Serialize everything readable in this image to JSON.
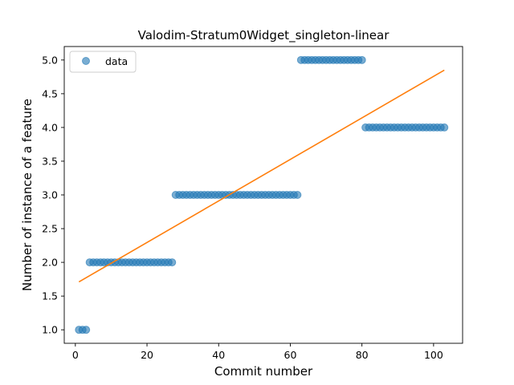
{
  "chart_data": {
    "type": "scatter",
    "title": "Valodim-Stratum0Widget_singleton-linear",
    "xlabel": "Commit number",
    "ylabel": "Number of instance of a feature",
    "xlim": [
      -3.1,
      108.1
    ],
    "ylim": [
      0.8,
      5.2
    ],
    "xticks": [
      0,
      20,
      40,
      60,
      80,
      100
    ],
    "yticks": [
      1.0,
      1.5,
      2.0,
      2.5,
      3.0,
      3.5,
      4.0,
      4.5,
      5.0
    ],
    "xtick_labels": [
      "0",
      "20",
      "40",
      "60",
      "80",
      "100"
    ],
    "ytick_labels": [
      "1.0",
      "1.5",
      "2.0",
      "2.5",
      "3.0",
      "3.5",
      "4.0",
      "4.5",
      "5.0"
    ],
    "legend": {
      "position": "upper-left",
      "entries": [
        "data"
      ]
    },
    "series": [
      {
        "name": "data",
        "kind": "scatter",
        "color": "#1f77b4",
        "segments": [
          {
            "x_start": 1,
            "x_end": 3,
            "y": 1
          },
          {
            "x_start": 4,
            "x_end": 27,
            "y": 2
          },
          {
            "x_start": 28,
            "x_end": 62,
            "y": 3
          },
          {
            "x_start": 63,
            "x_end": 80,
            "y": 5
          },
          {
            "x_start": 81,
            "x_end": 103,
            "y": 4
          }
        ]
      },
      {
        "kind": "line",
        "color": "#ff7f0e",
        "x": [
          1,
          103
        ],
        "y": [
          1.71,
          4.85
        ]
      }
    ]
  }
}
